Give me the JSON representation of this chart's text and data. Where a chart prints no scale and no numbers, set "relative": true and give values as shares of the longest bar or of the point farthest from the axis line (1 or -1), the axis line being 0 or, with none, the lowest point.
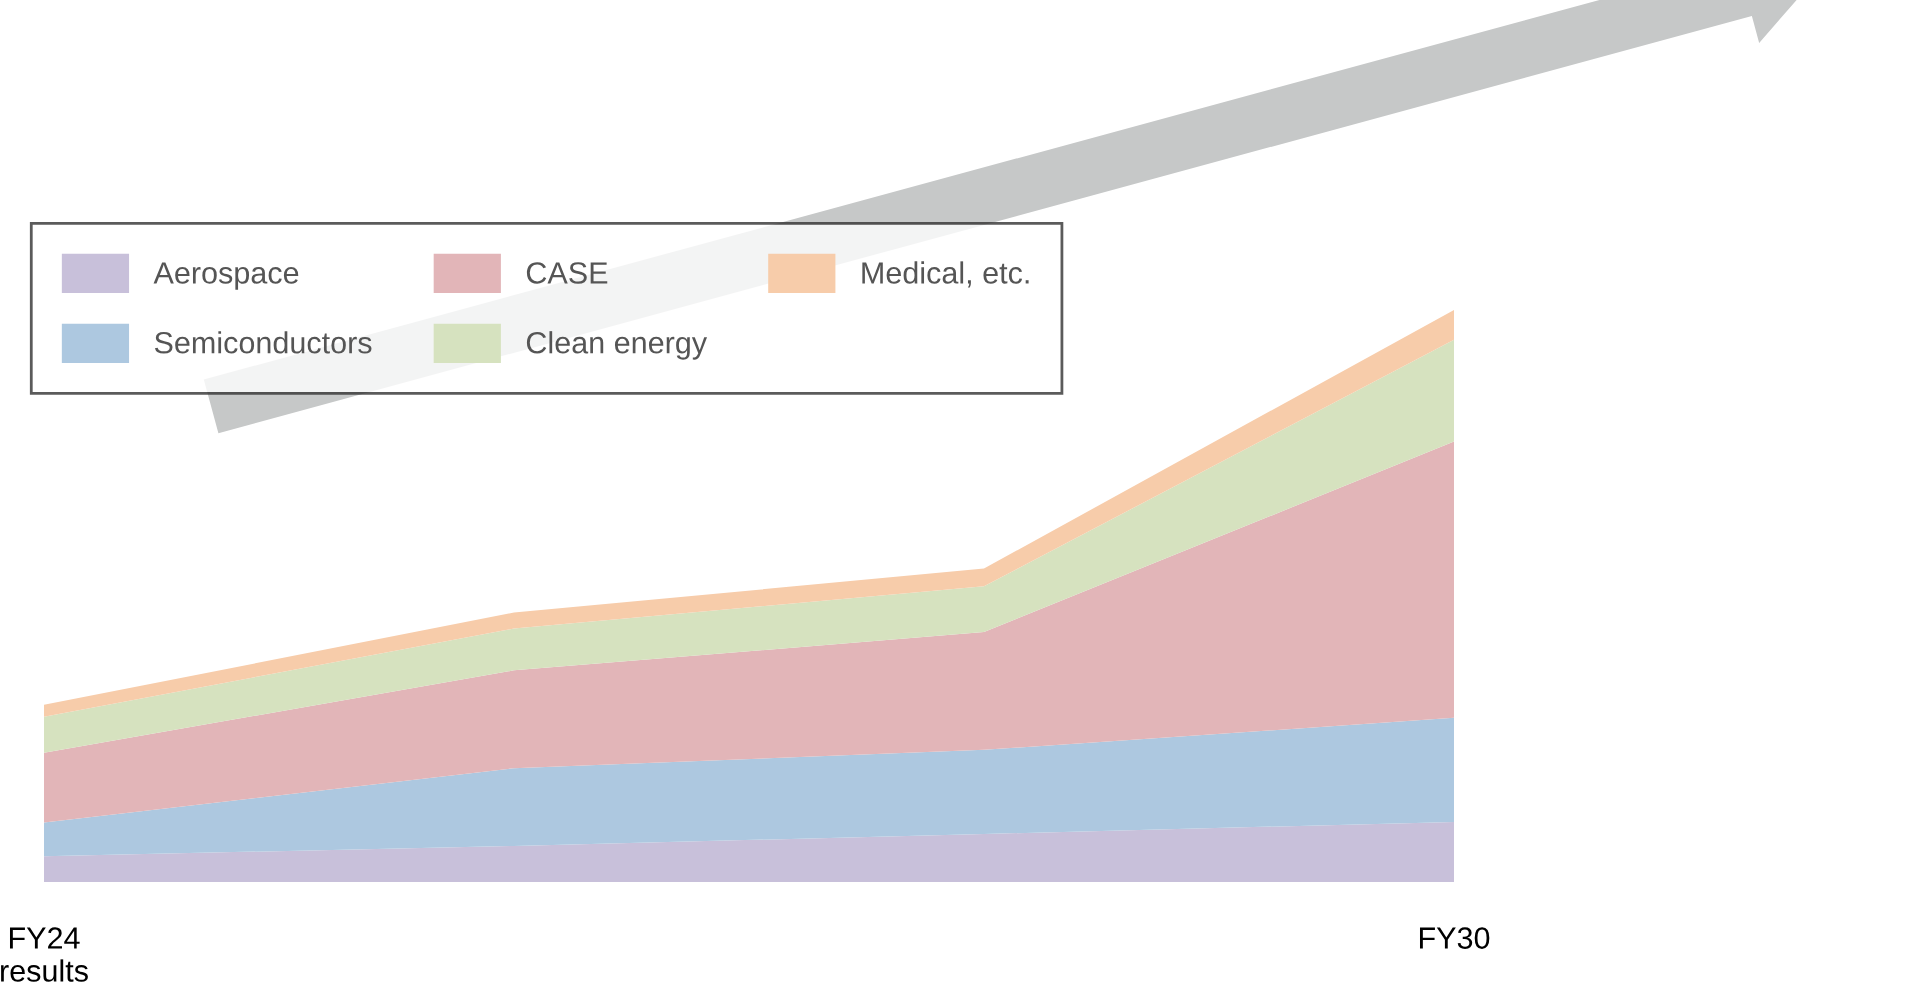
{
  "chart_data": {
    "type": "area",
    "stacked": true,
    "relative": true,
    "categories": [
      "FY24\nresults",
      null,
      null,
      "FY30"
    ],
    "series": [
      {
        "name": "Aerospace",
        "color": "#c8c0da",
        "values": [
          0.045,
          0.063,
          0.084,
          0.105
        ]
      },
      {
        "name": "Semiconductors",
        "color": "#adc8e0",
        "values": [
          0.059,
          0.136,
          0.147,
          0.182
        ]
      },
      {
        "name": "CASE",
        "color": "#e2b5b8",
        "values": [
          0.122,
          0.171,
          0.206,
          0.483
        ]
      },
      {
        "name": "Clean energy",
        "color": "#d6e2bf",
        "values": [
          0.063,
          0.073,
          0.08,
          0.178
        ]
      },
      {
        "name": "Medical, etc.",
        "color": "#f7ccaa",
        "values": [
          0.021,
          0.028,
          0.031,
          0.052
        ]
      }
    ],
    "legend": "top left",
    "grid": false
  }
}
